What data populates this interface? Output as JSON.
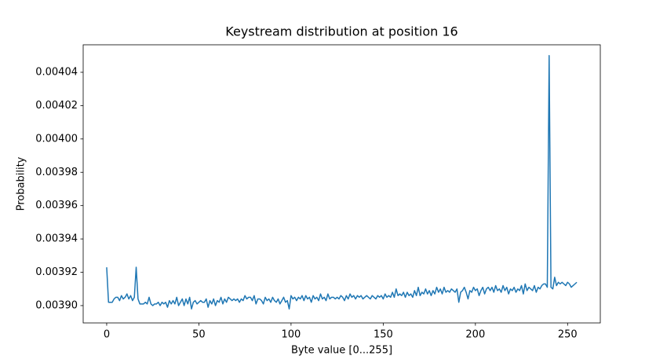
{
  "chart_data": {
    "type": "line",
    "title": "Keystream distribution at position 16",
    "xlabel": "Byte value [0...255]",
    "ylabel": "Probability",
    "color": "#1f77b4",
    "xlim": [
      -12.75,
      267.75
    ],
    "ylim": [
      0.0038896,
      0.0040565
    ],
    "xticks": [
      0,
      50,
      100,
      150,
      200,
      250
    ],
    "yticks": [
      {
        "value": 0.0039,
        "label": "0.00390"
      },
      0.00392,
      0.00394,
      0.00396,
      0.00398,
      {
        "value": 0.004,
        "label": "0.00400"
      },
      0.00402,
      0.00404
    ],
    "x": [
      0,
      1,
      2,
      3,
      4,
      5,
      6,
      7,
      8,
      9,
      10,
      11,
      12,
      13,
      14,
      15,
      16,
      17,
      18,
      19,
      20,
      21,
      22,
      23,
      24,
      25,
      26,
      27,
      28,
      29,
      30,
      31,
      32,
      33,
      34,
      35,
      36,
      37,
      38,
      39,
      40,
      41,
      42,
      43,
      44,
      45,
      46,
      47,
      48,
      49,
      50,
      51,
      52,
      53,
      54,
      55,
      56,
      57,
      58,
      59,
      60,
      61,
      62,
      63,
      64,
      65,
      66,
      67,
      68,
      69,
      70,
      71,
      72,
      73,
      74,
      75,
      76,
      77,
      78,
      79,
      80,
      81,
      82,
      83,
      84,
      85,
      86,
      87,
      88,
      89,
      90,
      91,
      92,
      93,
      94,
      95,
      96,
      97,
      98,
      99,
      100,
      101,
      102,
      103,
      104,
      105,
      106,
      107,
      108,
      109,
      110,
      111,
      112,
      113,
      114,
      115,
      116,
      117,
      118,
      119,
      120,
      121,
      122,
      123,
      124,
      125,
      126,
      127,
      128,
      129,
      130,
      131,
      132,
      133,
      134,
      135,
      136,
      137,
      138,
      139,
      140,
      141,
      142,
      143,
      144,
      145,
      146,
      147,
      148,
      149,
      150,
      151,
      152,
      153,
      154,
      155,
      156,
      157,
      158,
      159,
      160,
      161,
      162,
      163,
      164,
      165,
      166,
      167,
      168,
      169,
      170,
      171,
      172,
      173,
      174,
      175,
      176,
      177,
      178,
      179,
      180,
      181,
      182,
      183,
      184,
      185,
      186,
      187,
      188,
      189,
      190,
      191,
      192,
      193,
      194,
      195,
      196,
      197,
      198,
      199,
      200,
      201,
      202,
      203,
      204,
      205,
      206,
      207,
      208,
      209,
      210,
      211,
      212,
      213,
      214,
      215,
      216,
      217,
      218,
      219,
      220,
      221,
      222,
      223,
      224,
      225,
      226,
      227,
      228,
      229,
      230,
      231,
      232,
      233,
      234,
      235,
      236,
      237,
      238,
      239,
      240,
      241,
      242,
      243,
      244,
      245,
      246,
      247,
      248,
      249,
      250,
      251,
      252,
      253,
      254,
      255
    ],
    "values": [
      0.003923,
      0.003902,
      0.003902,
      0.003902,
      0.003904,
      0.003905,
      0.003905,
      0.003903,
      0.003906,
      0.003904,
      0.003905,
      0.003907,
      0.003904,
      0.003906,
      0.003903,
      0.003905,
      0.003923,
      0.003904,
      0.003901,
      0.003901,
      0.003901,
      0.003902,
      0.003901,
      0.003905,
      0.003901,
      0.0039,
      0.003901,
      0.003901,
      0.003902,
      0.0039,
      0.003902,
      0.003901,
      0.003902,
      0.003899,
      0.003903,
      0.003901,
      0.003903,
      0.003901,
      0.003905,
      0.0039,
      0.003902,
      0.003904,
      0.0039,
      0.003904,
      0.003901,
      0.003905,
      0.003898,
      0.003902,
      0.003903,
      0.003901,
      0.003902,
      0.003903,
      0.003902,
      0.003902,
      0.003904,
      0.003899,
      0.003903,
      0.003901,
      0.003904,
      0.0039,
      0.003903,
      0.003902,
      0.003905,
      0.003901,
      0.003904,
      0.003902,
      0.003905,
      0.003904,
      0.003903,
      0.003904,
      0.003903,
      0.003904,
      0.003902,
      0.003904,
      0.003903,
      0.003906,
      0.003904,
      0.003905,
      0.003905,
      0.003903,
      0.003906,
      0.003901,
      0.003904,
      0.003904,
      0.003903,
      0.003901,
      0.003905,
      0.003903,
      0.003904,
      0.003902,
      0.003905,
      0.003903,
      0.003902,
      0.003904,
      0.003901,
      0.003903,
      0.003905,
      0.003902,
      0.003903,
      0.003898,
      0.003906,
      0.003904,
      0.003905,
      0.003903,
      0.003905,
      0.003904,
      0.003906,
      0.003903,
      0.003906,
      0.003904,
      0.003905,
      0.003902,
      0.003906,
      0.003904,
      0.003905,
      0.003903,
      0.003907,
      0.003904,
      0.003905,
      0.003903,
      0.003907,
      0.003904,
      0.003905,
      0.003905,
      0.003904,
      0.003905,
      0.003904,
      0.003906,
      0.003905,
      0.003903,
      0.003906,
      0.003904,
      0.003907,
      0.003905,
      0.003906,
      0.003904,
      0.003906,
      0.003905,
      0.003906,
      0.003904,
      0.003905,
      0.003906,
      0.003905,
      0.003904,
      0.003906,
      0.003905,
      0.003904,
      0.003906,
      0.003905,
      0.003906,
      0.003904,
      0.003907,
      0.003905,
      0.003906,
      0.003905,
      0.003908,
      0.003905,
      0.00391,
      0.003906,
      0.003907,
      0.003906,
      0.003908,
      0.003905,
      0.003908,
      0.003906,
      0.003907,
      0.003905,
      0.003909,
      0.003906,
      0.003911,
      0.003906,
      0.003908,
      0.003907,
      0.00391,
      0.003907,
      0.003909,
      0.003906,
      0.003909,
      0.003907,
      0.003911,
      0.003908,
      0.00391,
      0.003907,
      0.003911,
      0.003908,
      0.003909,
      0.003908,
      0.00391,
      0.003909,
      0.003908,
      0.00391,
      0.003902,
      0.003908,
      0.003909,
      0.003911,
      0.003908,
      0.003904,
      0.003909,
      0.003908,
      0.003911,
      0.003909,
      0.00391,
      0.003906,
      0.003909,
      0.003911,
      0.003907,
      0.00391,
      0.003911,
      0.003909,
      0.003911,
      0.003908,
      0.003912,
      0.003909,
      0.00391,
      0.003908,
      0.003912,
      0.003909,
      0.003911,
      0.003907,
      0.00391,
      0.003909,
      0.003911,
      0.003908,
      0.00391,
      0.003909,
      0.003912,
      0.003907,
      0.003913,
      0.003909,
      0.003911,
      0.00391,
      0.003909,
      0.003912,
      0.003908,
      0.003911,
      0.00391,
      0.003912,
      0.003913,
      0.003913,
      0.003911,
      0.00405,
      0.003911,
      0.00391,
      0.003917,
      0.003912,
      0.003914,
      0.003913,
      0.003914,
      0.003913,
      0.003912,
      0.003914,
      0.003913,
      0.003911,
      0.003912,
      0.003913,
      0.003914
    ]
  }
}
